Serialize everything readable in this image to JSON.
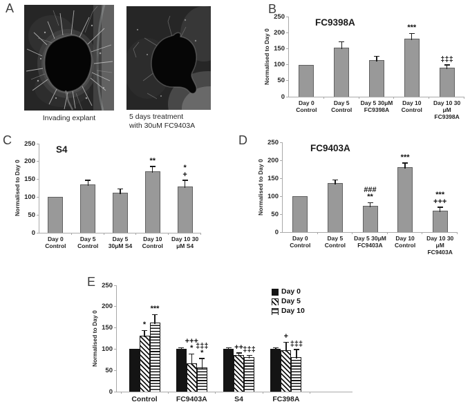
{
  "figure": {
    "panels": {
      "A": {
        "label": "A",
        "captions": {
          "left": "Invading explant",
          "right_line1": "5 days treatment",
          "right_line2": "with 30uM FC9403A"
        }
      },
      "B": {
        "label": "B"
      },
      "C": {
        "label": "C"
      },
      "D": {
        "label": "D"
      },
      "E": {
        "label": "E"
      }
    }
  },
  "colors": {
    "bar_fill": "#999999",
    "bar_border": "#606060",
    "series_day0": "#141414",
    "axis": "#a8a8a8",
    "text": "#262626",
    "error_bar": "#1a1a1a",
    "micrograph_background": "#2a2a2a"
  },
  "chart_data": [
    {
      "panel": "B",
      "type": "bar",
      "title": "FC9398A",
      "ylabel": "Normalised to Day 0",
      "ylim": [
        0,
        250
      ],
      "yticks": [
        0,
        50,
        100,
        150,
        200,
        250
      ],
      "grid": false,
      "categories": [
        "Day 0\nControl",
        "Day 5\nControl",
        "Day 5 30μM\nFC9398A",
        "Day 10\nControl",
        "Day 10 30\nμM\nFC9398A"
      ],
      "values": [
        100,
        153,
        115,
        180,
        90
      ],
      "errors": [
        0,
        17,
        10,
        16,
        8
      ],
      "annotations": [
        "",
        "",
        "",
        "***",
        "‡‡‡"
      ]
    },
    {
      "panel": "C",
      "type": "bar",
      "title": "S4",
      "ylabel": "Normalised to Day 0",
      "ylim": [
        0,
        250
      ],
      "yticks": [
        0,
        50,
        100,
        150,
        200,
        250
      ],
      "grid": false,
      "categories": [
        "Day 0\nControl",
        "Day 5\nControl",
        "Day 5\n30μM S4",
        "Day 10\nControl",
        "Day 10 30\nμM S4"
      ],
      "values": [
        100,
        135,
        113,
        172,
        130
      ],
      "errors": [
        0,
        11,
        9,
        13,
        16
      ],
      "annotations": [
        "",
        "",
        "",
        "**",
        "*\n+"
      ]
    },
    {
      "panel": "D",
      "type": "bar",
      "title": "FC9403A",
      "ylabel": "Normalised to Day 0",
      "ylim": [
        0,
        250
      ],
      "yticks": [
        0,
        50,
        100,
        150,
        200,
        250
      ],
      "grid": false,
      "categories": [
        "Day 0\nControl",
        "Day 5\nControl",
        "Day 5 30μM\nFC9403A",
        "Day 10\nControl",
        "Day 10 30\nμM\nFC9403A"
      ],
      "values": [
        100,
        136,
        74,
        180,
        60
      ],
      "errors": [
        0,
        8,
        7,
        11,
        8
      ],
      "annotations": [
        "",
        "",
        "###\n**",
        "***",
        "***\n+++"
      ]
    },
    {
      "panel": "E",
      "type": "bar",
      "title": "",
      "ylabel": "Normalised to Day 0",
      "ylim": [
        0,
        250
      ],
      "yticks": [
        0,
        50,
        100,
        150,
        200,
        250
      ],
      "grid": false,
      "legend_position": "top-right",
      "categories": [
        "Control",
        "FC9403A",
        "S4",
        "FC398A"
      ],
      "series": [
        {
          "name": "Day 0",
          "pattern": "solid",
          "values": [
            100,
            100,
            100,
            100
          ],
          "errors": [
            0,
            2,
            2,
            2
          ],
          "annotations": [
            "",
            "",
            "",
            ""
          ]
        },
        {
          "name": "Day 5",
          "pattern": "diagonal",
          "values": [
            132,
            66,
            86,
            97
          ],
          "errors": [
            11,
            21,
            4,
            18
          ],
          "annotations": [
            "*",
            "+++\n*",
            "++",
            "+"
          ]
        },
        {
          "name": "Day 10",
          "pattern": "horizontal",
          "values": [
            162,
            57,
            81,
            82
          ],
          "errors": [
            18,
            20,
            3,
            16
          ],
          "annotations": [
            "***",
            "‡‡‡\n*",
            "‡‡‡",
            "‡‡‡"
          ]
        }
      ]
    }
  ]
}
